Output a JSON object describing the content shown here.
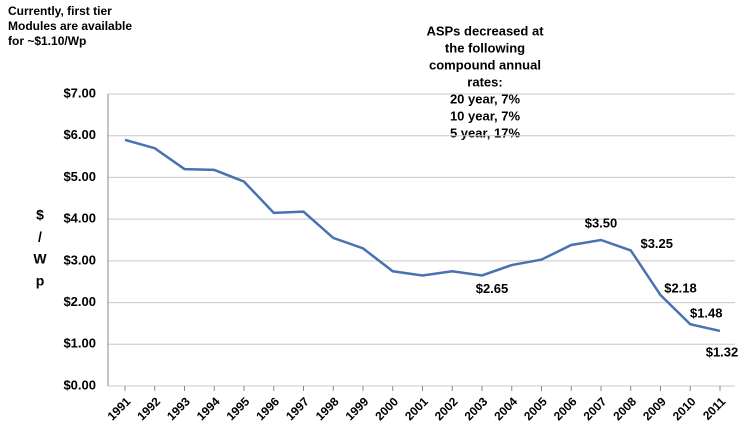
{
  "chart_data": {
    "type": "line",
    "note_left": [
      "Currently, first tier",
      "Modules are available",
      "for ~$1.10/Wp"
    ],
    "note_center": [
      "ASPs decreased at",
      "the following",
      "compound annual",
      "rates:",
      "20 year, 7%",
      "10 year, 7%",
      "5 year, 17%"
    ],
    "ylabel": [
      "$",
      "/",
      "W",
      "p"
    ],
    "categories": [
      "1991",
      "1992",
      "1993",
      "1994",
      "1995",
      "1996",
      "1997",
      "1998",
      "1999",
      "2000",
      "2001",
      "2002",
      "2003",
      "2004",
      "2005",
      "2006",
      "2007",
      "2008",
      "2009",
      "2010",
      "2011"
    ],
    "series": [
      {
        "color": "#4a72b0",
        "values": [
          5.9,
          5.7,
          5.2,
          5.18,
          4.9,
          4.15,
          4.18,
          3.55,
          3.3,
          2.75,
          2.65,
          2.75,
          2.65,
          2.9,
          3.03,
          3.38,
          3.5,
          3.25,
          2.18,
          1.48,
          1.32
        ],
        "value_labels": [
          null,
          null,
          null,
          null,
          null,
          null,
          null,
          null,
          null,
          null,
          null,
          null,
          "$2.65",
          null,
          null,
          null,
          "$3.50",
          "$3.25",
          "$2.18",
          "$1.48",
          "$1.32"
        ]
      }
    ],
    "ylim": [
      0,
      7
    ],
    "yticks": [
      {
        "value": 0,
        "label": "$0.00"
      },
      {
        "value": 1,
        "label": "$1.00"
      },
      {
        "value": 2,
        "label": "$2.00"
      },
      {
        "value": 3,
        "label": "$3.00"
      },
      {
        "value": 4,
        "label": "$4.00"
      },
      {
        "value": 5,
        "label": "$5.00"
      },
      {
        "value": 6,
        "label": "$6.00"
      },
      {
        "value": 7,
        "label": "$7.00"
      }
    ],
    "grid": true
  }
}
